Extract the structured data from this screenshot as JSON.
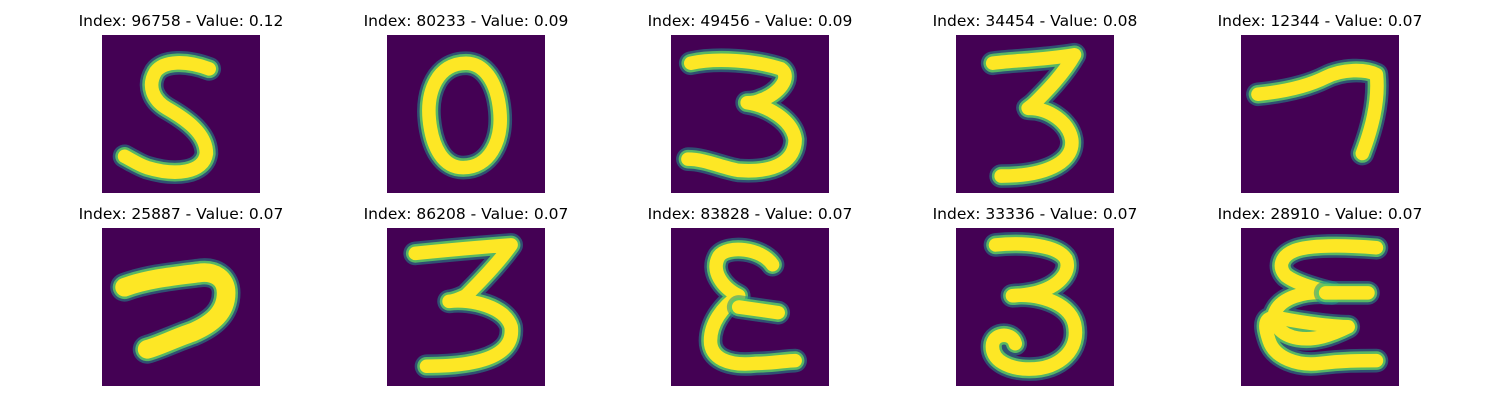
{
  "colors": {
    "background": "#440154",
    "halo": "#21918c",
    "mid": "#5ec962",
    "stroke": "#fde725"
  },
  "panels": [
    {
      "title": "Index: 96758 - Value: 0.12",
      "index": 96758,
      "value": 0.12,
      "glyph": "5"
    },
    {
      "title": "Index: 80233 - Value: 0.09",
      "index": 80233,
      "value": 0.09,
      "glyph": "0"
    },
    {
      "title": "Index: 49456 - Value: 0.09",
      "index": 49456,
      "value": 0.09,
      "glyph": "3"
    },
    {
      "title": "Index: 34454 - Value: 0.08",
      "index": 34454,
      "value": 0.08,
      "glyph": "3"
    },
    {
      "title": "Index: 12344 - Value: 0.07",
      "index": 12344,
      "value": 0.07,
      "glyph": "7"
    },
    {
      "title": "Index: 25887 - Value: 0.07",
      "index": 25887,
      "value": 0.07,
      "glyph": "7"
    },
    {
      "title": "Index: 86208 - Value: 0.07",
      "index": 86208,
      "value": 0.07,
      "glyph": "3"
    },
    {
      "title": "Index: 83828 - Value: 0.07",
      "index": 83828,
      "value": 0.07,
      "glyph": "3"
    },
    {
      "title": "Index: 33336 - Value: 0.07",
      "index": 33336,
      "value": 0.07,
      "glyph": "3"
    },
    {
      "title": "Index: 28910 - Value: 0.07",
      "index": 28910,
      "value": 0.07,
      "glyph": "3"
    }
  ]
}
